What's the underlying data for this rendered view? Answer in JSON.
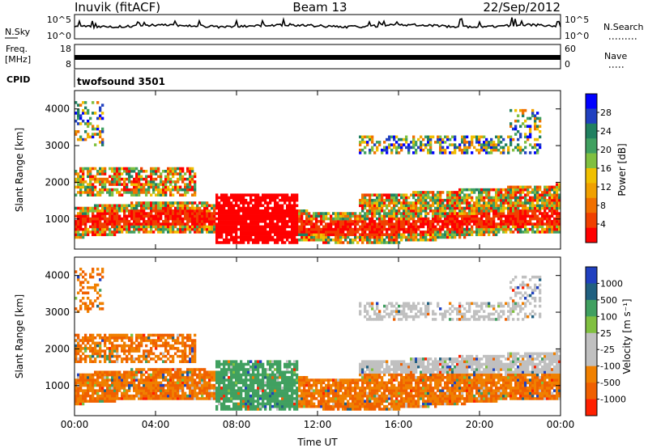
{
  "header": {
    "station": "Inuvik (fitACF)",
    "beam": "Beam 13",
    "date": "22/Sep/2012"
  },
  "side_labels": {
    "nsky": "N.Sky",
    "nsearch": "N.Search",
    "freq": "Freq.",
    "freq_unit": "[MHz]",
    "nave": "Nave",
    "cpid": "CPID"
  },
  "cpid_value": "twofsound 3501",
  "time_axis_label": "Time UT",
  "colors": {
    "power": [
      "#0000ff",
      "#2040c0",
      "#208060",
      "#40a060",
      "#80c040",
      "#f0c000",
      "#f0a000",
      "#f07000",
      "#f04000",
      "#ff0000"
    ],
    "velocity": [
      "#2040c0",
      "#206080",
      "#40a060",
      "#80c040",
      "#c0c0c0",
      "#c0c0c0",
      "#f08000",
      "#f06000",
      "#ff2000"
    ]
  },
  "chart_data": [
    {
      "type": "line",
      "name": "noise",
      "left_ticks": [
        "10^5",
        "10^0"
      ],
      "right_ticks": [
        "10^5",
        "10^0"
      ],
      "xlim": [
        0,
        24
      ]
    },
    {
      "type": "line",
      "name": "frequency",
      "left_ticks": [
        "18",
        "8"
      ],
      "right_ticks": [
        "60",
        "0"
      ],
      "xlim": [
        0,
        24
      ]
    },
    {
      "type": "heatmap",
      "name": "power",
      "ylabel": "Slant Range [km]",
      "xlabel": "Time UT",
      "x_ticks": [
        "00:00",
        "04:00",
        "08:00",
        "12:00",
        "16:00",
        "20:00",
        "00:00"
      ],
      "xlim": [
        0,
        24
      ],
      "y_ticks": [
        1000,
        2000,
        3000,
        4000
      ],
      "ylim": [
        180,
        4500
      ],
      "colorbar_label": "Power [dB]",
      "colorbar_ticks": [
        4,
        8,
        12,
        16,
        20,
        24,
        28
      ]
    },
    {
      "type": "heatmap",
      "name": "velocity",
      "ylabel": "Slant Range [km]",
      "xlabel": "Time UT",
      "x_ticks": [
        "00:00",
        "04:00",
        "08:00",
        "12:00",
        "16:00",
        "20:00",
        "00:00"
      ],
      "xlim": [
        0,
        24
      ],
      "y_ticks": [
        1000,
        2000,
        3000,
        4000
      ],
      "ylim": [
        180,
        4500
      ],
      "colorbar_label": "Velocity [m s⁻¹]",
      "colorbar_ticks": [
        1000,
        500,
        100,
        25,
        -25,
        -100,
        -500,
        -1000
      ]
    }
  ]
}
